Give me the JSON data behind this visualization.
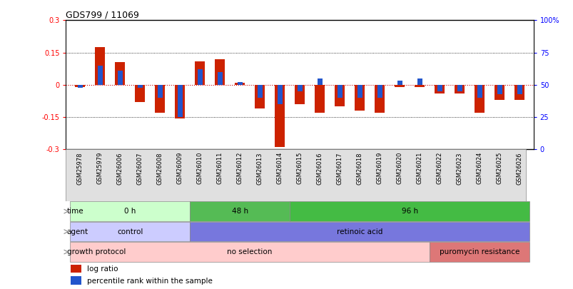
{
  "title": "GDS799 / 11069",
  "samples": [
    "GSM25978",
    "GSM25979",
    "GSM26006",
    "GSM26007",
    "GSM26008",
    "GSM26009",
    "GSM26010",
    "GSM26011",
    "GSM26012",
    "GSM26013",
    "GSM26014",
    "GSM26015",
    "GSM26016",
    "GSM26017",
    "GSM26018",
    "GSM26019",
    "GSM26020",
    "GSM26021",
    "GSM26022",
    "GSM26023",
    "GSM26024",
    "GSM26025",
    "GSM26026"
  ],
  "log_ratio": [
    -0.01,
    0.175,
    0.105,
    -0.08,
    -0.13,
    -0.155,
    0.11,
    0.12,
    0.01,
    -0.11,
    -0.29,
    -0.09,
    -0.13,
    -0.1,
    -0.12,
    -0.13,
    -0.01,
    -0.01,
    -0.04,
    -0.04,
    -0.13,
    -0.07,
    -0.07
  ],
  "percentile_rank": [
    48,
    65,
    61,
    48,
    40,
    25,
    62,
    60,
    52,
    40,
    35,
    45,
    55,
    40,
    40,
    40,
    53,
    55,
    45,
    45,
    40,
    43,
    43
  ],
  "ylim_left": [
    -0.3,
    0.3
  ],
  "ylim_right": [
    0,
    100
  ],
  "yticks_left": [
    -0.3,
    -0.15,
    0.0,
    0.15,
    0.3
  ],
  "yticks_right": [
    0,
    25,
    50,
    75,
    100
  ],
  "ytick_labels_right": [
    "0",
    "25",
    "50",
    "75",
    "100%"
  ],
  "bar_color_red": "#cc2200",
  "bar_color_blue": "#2255cc",
  "background_color": "#ffffff",
  "time_row": {
    "label": "time",
    "groups": [
      {
        "label": "0 h",
        "start": 0,
        "end": 5,
        "color": "#ccffcc"
      },
      {
        "label": "48 h",
        "start": 6,
        "end": 10,
        "color": "#55bb55"
      },
      {
        "label": "96 h",
        "start": 11,
        "end": 22,
        "color": "#44bb44"
      }
    ]
  },
  "agent_row": {
    "label": "agent",
    "groups": [
      {
        "label": "control",
        "start": 0,
        "end": 5,
        "color": "#ccccff"
      },
      {
        "label": "retinoic acid",
        "start": 6,
        "end": 22,
        "color": "#7777dd"
      }
    ]
  },
  "growth_protocol_row": {
    "label": "growth protocol",
    "groups": [
      {
        "label": "no selection",
        "start": 0,
        "end": 17,
        "color": "#ffcccc"
      },
      {
        "label": "puromycin resistance",
        "start": 18,
        "end": 22,
        "color": "#dd7777"
      }
    ]
  }
}
